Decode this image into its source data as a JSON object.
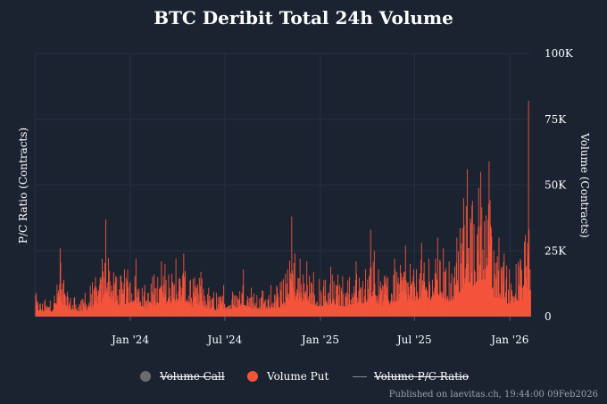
{
  "colors": {
    "background": "#1b2331",
    "grid": "#263142",
    "volume_call": "#6b6b6b",
    "volume_put": "#f5543c",
    "pc_ratio_line": "#888888",
    "text": "#ffffff",
    "footer_text": "#9aa0a8"
  },
  "legend": {
    "volume_call": "Volume Call",
    "volume_put": "Volume Put",
    "pc_ratio": "Volume P/C Ratio"
  },
  "footer": "Published on laevitas.ch, 19:44:00 09Feb2026",
  "chart_data": {
    "type": "bar",
    "title": "BTC Deribit Total 24h Volume",
    "xlabel": "",
    "ylabel_left": "P/C Ratio (Contracts)",
    "ylabel_right": "Volume (Contracts)",
    "x_range": [
      "2023-07-01",
      "2026-02-09"
    ],
    "x_ticks": [
      {
        "date": "2024-01-01",
        "label": "Jan '24"
      },
      {
        "date": "2024-07-01",
        "label": "Jul '24"
      },
      {
        "date": "2025-01-01",
        "label": "Jan '25"
      },
      {
        "date": "2025-07-01",
        "label": "Jul '25"
      },
      {
        "date": "2026-01-01",
        "label": "Jan '26"
      }
    ],
    "y_right_range": [
      0,
      100000
    ],
    "y_right_ticks": [
      {
        "value": 0,
        "label": "0"
      },
      {
        "value": 25000,
        "label": "25K"
      },
      {
        "value": 50000,
        "label": "50K"
      },
      {
        "value": 75000,
        "label": "75K"
      },
      {
        "value": 100000,
        "label": "100K"
      }
    ],
    "legend_position": "bottom-center",
    "series": [
      {
        "name": "Volume Call",
        "visible": false
      },
      {
        "name": "Volume P/C Ratio",
        "visible": false
      },
      {
        "name": "Volume Put",
        "visible": true,
        "points": [
          [
            "2023-07-03",
            9000
          ],
          [
            "2023-07-20",
            6500
          ],
          [
            "2023-08-07",
            8000
          ],
          [
            "2023-08-18",
            26000
          ],
          [
            "2023-08-25",
            14000
          ],
          [
            "2023-09-15",
            7500
          ],
          [
            "2023-10-05",
            9000
          ],
          [
            "2023-10-25",
            15000
          ],
          [
            "2023-11-07",
            22000
          ],
          [
            "2023-11-14",
            37000
          ],
          [
            "2023-12-05",
            15000
          ],
          [
            "2023-12-20",
            18000
          ],
          [
            "2024-01-11",
            22000
          ],
          [
            "2024-01-28",
            12000
          ],
          [
            "2024-02-15",
            16000
          ],
          [
            "2024-02-29",
            21000
          ],
          [
            "2024-03-07",
            20000
          ],
          [
            "2024-03-14",
            16000
          ],
          [
            "2024-03-28",
            22000
          ],
          [
            "2024-04-12",
            24000
          ],
          [
            "2024-04-25",
            14000
          ],
          [
            "2024-05-15",
            17000
          ],
          [
            "2024-05-30",
            11000
          ],
          [
            "2024-06-14",
            9000
          ],
          [
            "2024-06-28",
            12000
          ],
          [
            "2024-07-15",
            9500
          ],
          [
            "2024-08-05",
            18000
          ],
          [
            "2024-08-20",
            11000
          ],
          [
            "2024-09-10",
            10000
          ],
          [
            "2024-09-27",
            12000
          ],
          [
            "2024-10-15",
            13000
          ],
          [
            "2024-10-29",
            18000
          ],
          [
            "2024-11-06",
            38000
          ],
          [
            "2024-11-12",
            24000
          ],
          [
            "2024-11-22",
            22000
          ],
          [
            "2024-12-05",
            21000
          ],
          [
            "2024-12-18",
            17000
          ],
          [
            "2025-01-10",
            14000
          ],
          [
            "2025-01-20",
            19000
          ],
          [
            "2025-02-03",
            16000
          ],
          [
            "2025-02-25",
            15000
          ],
          [
            "2025-03-10",
            21000
          ],
          [
            "2025-03-28",
            18000
          ],
          [
            "2025-04-07",
            33000
          ],
          [
            "2025-04-22",
            18000
          ],
          [
            "2025-05-10",
            15000
          ],
          [
            "2025-05-23",
            22000
          ],
          [
            "2025-06-13",
            27000
          ],
          [
            "2025-06-22",
            20000
          ],
          [
            "2025-07-14",
            28000
          ],
          [
            "2025-07-28",
            22000
          ],
          [
            "2025-08-14",
            30000
          ],
          [
            "2025-08-25",
            26000
          ],
          [
            "2025-09-05",
            21000
          ],
          [
            "2025-09-20",
            30000
          ],
          [
            "2025-10-03",
            45000
          ],
          [
            "2025-10-10",
            56000
          ],
          [
            "2025-10-20",
            44000
          ],
          [
            "2025-11-05",
            55000
          ],
          [
            "2025-11-21",
            59000
          ],
          [
            "2025-11-30",
            25000
          ],
          [
            "2025-12-10",
            30000
          ],
          [
            "2025-12-20",
            24000
          ],
          [
            "2025-12-30",
            18000
          ],
          [
            "2026-01-12",
            20000
          ],
          [
            "2026-01-20",
            22000
          ],
          [
            "2026-01-30",
            31000
          ],
          [
            "2026-02-03",
            28000
          ],
          [
            "2026-02-05",
            82000
          ],
          [
            "2026-02-08",
            18000
          ]
        ]
      }
    ]
  }
}
